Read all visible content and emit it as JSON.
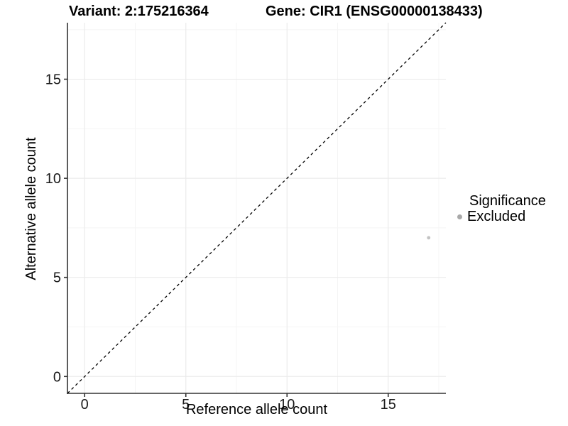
{
  "figure": {
    "title_left": "Variant: 2:175216364",
    "title_right": "Gene: CIR1 (ENSG00000138433)"
  },
  "chart_data": {
    "type": "scatter",
    "title": "Variant: 2:175216364  |  Gene: CIR1 (ENSG00000138433)",
    "xlabel": "Reference allele count",
    "ylabel": "Alternative allele count",
    "xlim": [
      -0.85,
      17.85
    ],
    "ylim": [
      -0.85,
      17.85
    ],
    "x_ticks": [
      0,
      5,
      10,
      15
    ],
    "y_ticks": [
      0,
      5,
      10,
      15
    ],
    "x_minor_ticks": [
      2.5,
      7.5,
      12.5,
      17.5
    ],
    "y_minor_ticks": [
      2.5,
      7.5,
      12.5,
      17.5
    ],
    "grid": "major+minor",
    "grid_major_color": "#ebebeb",
    "grid_minor_color": "#f5f5f5",
    "axis_color": "#333333",
    "series": [
      {
        "name": "Excluded",
        "marker": "circle",
        "color": "#c3c3c3",
        "points": [
          {
            "x": 17,
            "y": 7
          }
        ]
      }
    ],
    "reference_line": {
      "type": "identity",
      "style": "dashed",
      "color": "#000000",
      "from": [
        -0.85,
        -0.85
      ],
      "to": [
        17.85,
        17.85
      ]
    },
    "legend": {
      "title": "Significance",
      "position": "right",
      "entries": [
        {
          "label": "Excluded",
          "color": "#a9a9a9",
          "marker": "circle"
        }
      ]
    }
  }
}
